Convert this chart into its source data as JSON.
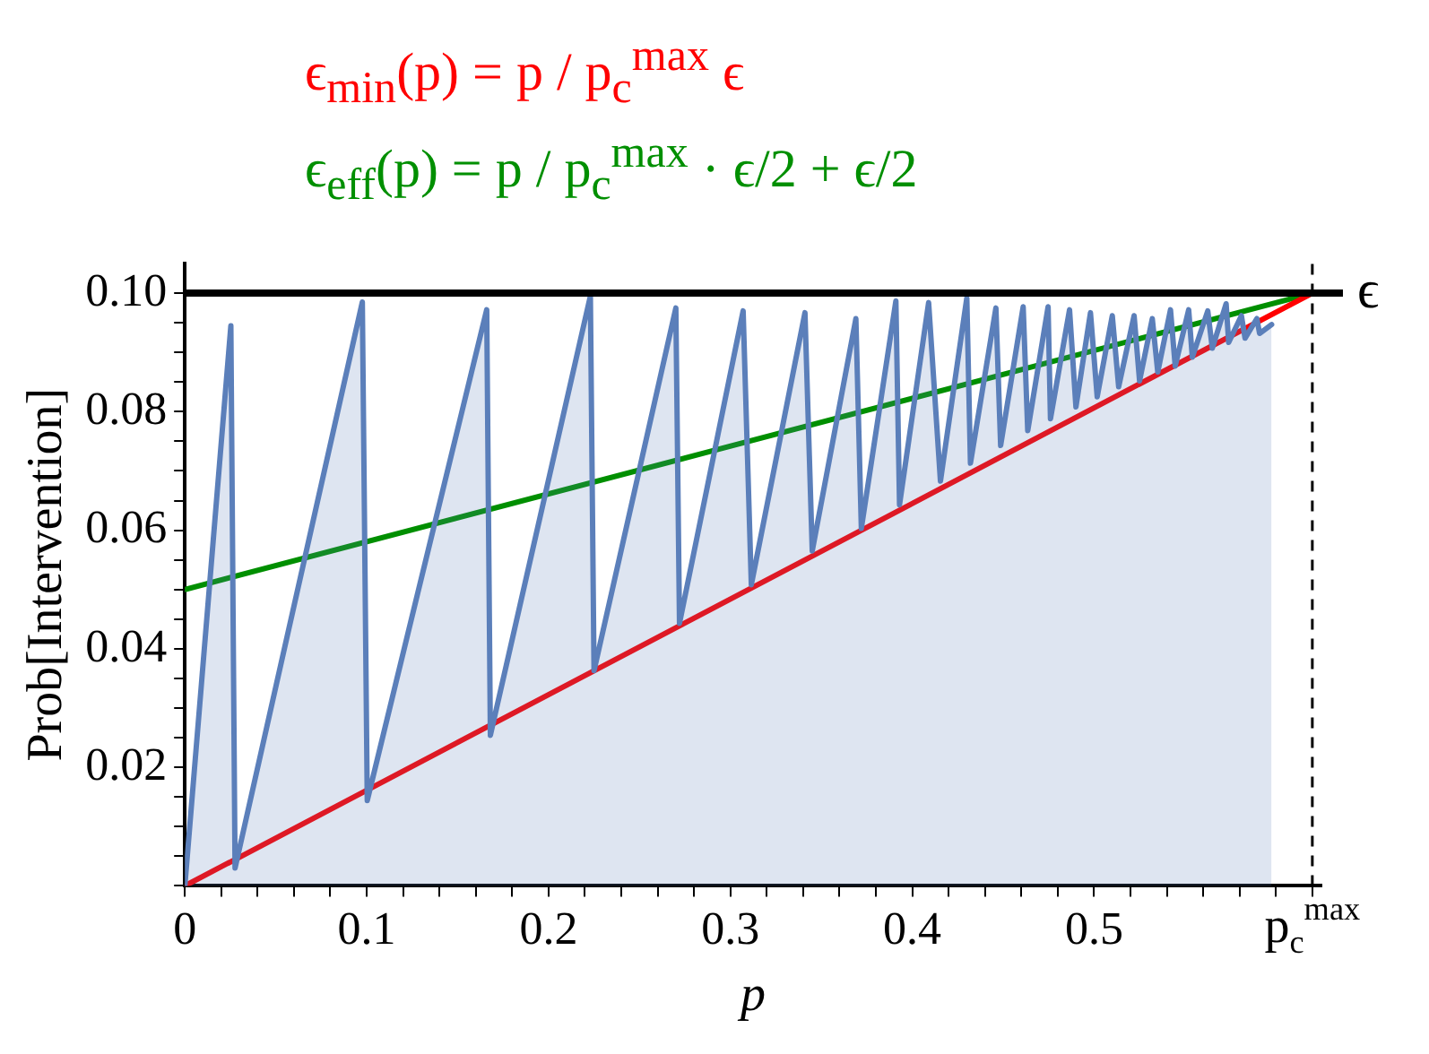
{
  "chart_data": {
    "type": "line",
    "xlabel": "p",
    "ylabel": "Prob[Intervention]",
    "xlim": [
      0,
      0.625
    ],
    "ylim": [
      0,
      0.105
    ],
    "xticks": [
      0,
      {
        "value": 0.02,
        "label": null
      },
      {
        "value": 0.04,
        "label": null
      },
      {
        "value": 0.06,
        "label": null
      },
      {
        "value": 0.08,
        "label": null
      },
      0.1,
      {
        "value": 0.12,
        "label": null
      },
      {
        "value": 0.14,
        "label": null
      },
      {
        "value": 0.16,
        "label": null
      },
      {
        "value": 0.18,
        "label": null
      },
      0.2,
      {
        "value": 0.22,
        "label": null
      },
      {
        "value": 0.24,
        "label": null
      },
      {
        "value": 0.26,
        "label": null
      },
      {
        "value": 0.28,
        "label": null
      },
      0.3,
      {
        "value": 0.32,
        "label": null
      },
      {
        "value": 0.34,
        "label": null
      },
      {
        "value": 0.36,
        "label": null
      },
      {
        "value": 0.38,
        "label": null
      },
      0.4,
      {
        "value": 0.42,
        "label": null
      },
      {
        "value": 0.44,
        "label": null
      },
      {
        "value": 0.46,
        "label": null
      },
      {
        "value": 0.48,
        "label": null
      },
      0.5,
      {
        "value": 0.52,
        "label": null
      },
      {
        "value": 0.54,
        "label": null
      },
      {
        "value": 0.56,
        "label": null
      },
      {
        "value": 0.58,
        "label": null
      },
      {
        "value": 0.6,
        "label": null
      },
      {
        "value": 0.62,
        "label": "p$_{c}$$^{max}$"
      }
    ],
    "yticks": [
      {
        "value": 0,
        "label": null
      },
      {
        "value": 0.005,
        "label": null
      },
      {
        "value": 0.01,
        "label": null
      },
      {
        "value": 0.015,
        "label": null
      },
      0.02,
      {
        "value": 0.025,
        "label": null
      },
      {
        "value": 0.03,
        "label": null
      },
      {
        "value": 0.035,
        "label": null
      },
      0.04,
      {
        "value": 0.045,
        "label": null
      },
      {
        "value": 0.05,
        "label": null
      },
      {
        "value": 0.055,
        "label": null
      },
      0.06,
      {
        "value": 0.065,
        "label": null
      },
      {
        "value": 0.07,
        "label": null
      },
      {
        "value": 0.075,
        "label": null
      },
      0.08,
      {
        "value": 0.085,
        "label": null
      },
      {
        "value": 0.09,
        "label": null
      },
      {
        "value": 0.095,
        "label": null
      },
      {
        "value": 0.1,
        "label": "0.10"
      }
    ],
    "grid": false,
    "legend": "top",
    "marker": "none",
    "line_style": "solid",
    "ref_lines": [
      {
        "axis": "y",
        "value": 0.1,
        "label": "ϵ",
        "color": "#000000",
        "line_style": "solid"
      },
      {
        "axis": "x",
        "value": 0.62,
        "color": "#000000",
        "line_style": "dashed"
      }
    ],
    "series": [
      {
        "type": "area",
        "color": "#5b7fba",
        "x": [
          0,
          0.0253,
          0.0276,
          0.0976,
          0.1003,
          0.166,
          0.168,
          0.223,
          0.225,
          0.27,
          0.272,
          0.307,
          0.3115,
          0.341,
          0.345,
          0.369,
          0.372,
          0.391,
          0.393,
          0.409,
          0.4155,
          0.43,
          0.432,
          0.446,
          0.4486,
          0.461,
          0.4635,
          0.4747,
          0.476,
          0.4865,
          0.49,
          0.498,
          0.5017,
          0.51,
          0.5135,
          0.522,
          0.525,
          0.532,
          0.535,
          0.542,
          0.5446,
          0.552,
          0.554,
          0.5625,
          0.565,
          0.5726,
          0.574,
          0.581,
          0.583,
          0.5895,
          0.591,
          0.5976
        ],
        "values": [
          0,
          0.0945,
          0.003,
          0.0985,
          0.0144,
          0.0972,
          0.0254,
          0.0995,
          0.0363,
          0.0975,
          0.0443,
          0.097,
          0.0508,
          0.0967,
          0.0565,
          0.0957,
          0.0603,
          0.0987,
          0.0643,
          0.0984,
          0.0683,
          0.0992,
          0.0713,
          0.0975,
          0.0743,
          0.0977,
          0.0768,
          0.0977,
          0.0788,
          0.0972,
          0.0808,
          0.0967,
          0.0825,
          0.0962,
          0.0842,
          0.0962,
          0.0852,
          0.0957,
          0.0867,
          0.0972,
          0.0877,
          0.0972,
          0.0892,
          0.097,
          0.0907,
          0.0982,
          0.0917,
          0.0962,
          0.0924,
          0.0957,
          0.0932,
          0.0947
        ]
      },
      {
        "type": "line",
        "name": "ϵ$_{min}$(p) = p / p$_{c}$$^{max}$ ϵ",
        "color": "#ff0000",
        "x": [
          0,
          0.62
        ],
        "values": [
          0,
          0.1
        ]
      },
      {
        "type": "line",
        "name": "ϵ$_{eff}$(p) = p / p$_{c}$$^{max}$ · ϵ/2 + ϵ/2",
        "color": "#008f00",
        "x": [
          0,
          0.62
        ],
        "values": [
          0.05,
          0.1
        ]
      }
    ]
  }
}
